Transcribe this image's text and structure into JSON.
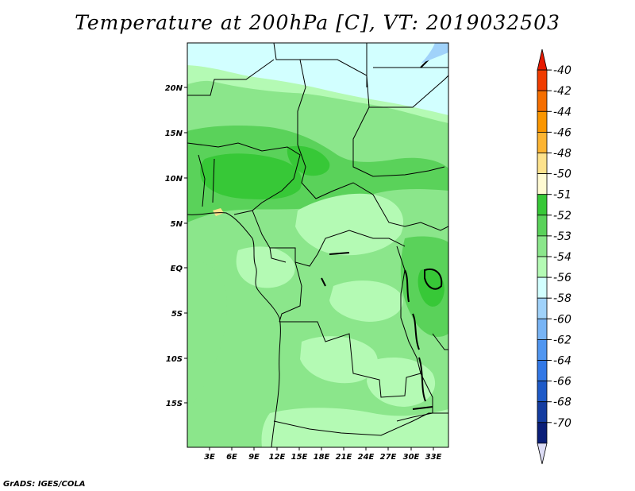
{
  "title": "Temperature at 200hPa [C], VT: 2019032503",
  "credit": "GrADS: IGES/COLA",
  "lat_ticks": [
    "20N",
    "15N",
    "10N",
    "5N",
    "EQ",
    "5S",
    "10S",
    "15S"
  ],
  "lon_ticks": [
    "3E",
    "6E",
    "9E",
    "12E",
    "15E",
    "18E",
    "21E",
    "24E",
    "27E",
    "30E",
    "33E"
  ],
  "colorbar": {
    "labels": [
      "-40",
      "-42",
      "-44",
      "-46",
      "-48",
      "-50",
      "-51",
      "-52",
      "-53",
      "-54",
      "-56",
      "-58",
      "-60",
      "-62",
      "-64",
      "-66",
      "-68",
      "-70"
    ],
    "colors": [
      "#e61900",
      "#f03c00",
      "#f56e00",
      "#fa9600",
      "#fcb432",
      "#fde28c",
      "#fffad2",
      "#37c837",
      "#5ad25a",
      "#8be68b",
      "#b4fab4",
      "#d2ffff",
      "#a0d2fa",
      "#78b4f5",
      "#5096f0",
      "#3278e6",
      "#1e5ac8",
      "#143ca0",
      "#0a1e78",
      "#dcdcf5"
    ]
  },
  "legend_colors": {
    "-51_-52": "#37c837",
    "-52_-53": "#5ad25a",
    "-53_-54": "#8be68b",
    "-54_-56": "#b4fab4",
    "-56_-58": "#d2ffff"
  }
}
